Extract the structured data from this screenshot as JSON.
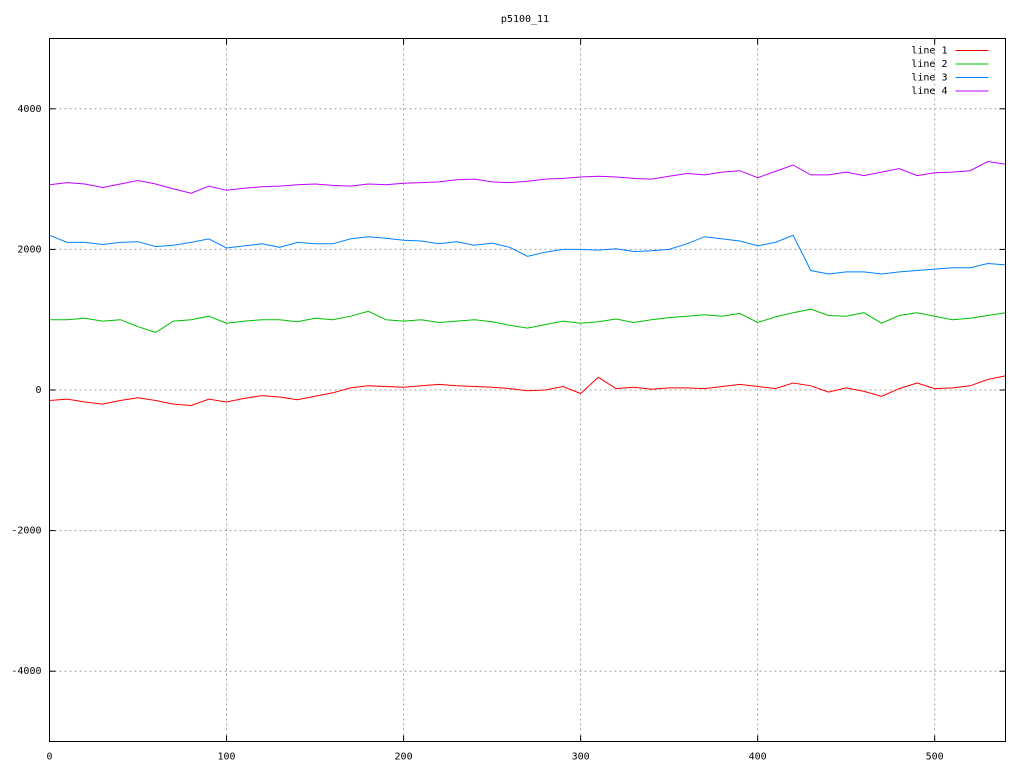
{
  "chart_data": {
    "type": "line",
    "title": "p5100_11",
    "x": [
      0,
      10,
      20,
      30,
      40,
      50,
      60,
      70,
      80,
      90,
      100,
      110,
      120,
      130,
      140,
      150,
      160,
      170,
      180,
      190,
      200,
      210,
      220,
      230,
      240,
      250,
      260,
      270,
      280,
      290,
      300,
      310,
      320,
      330,
      340,
      350,
      360,
      370,
      380,
      390,
      400,
      410,
      420,
      430,
      440,
      450,
      460,
      470,
      480,
      490,
      500,
      510,
      520,
      530,
      540
    ],
    "series": [
      {
        "name": "line 1",
        "color": "#ff0000",
        "values": [
          -150,
          -130,
          -170,
          -200,
          -150,
          -110,
          -150,
          -200,
          -220,
          -130,
          -170,
          -120,
          -80,
          -100,
          -140,
          -90,
          -40,
          30,
          60,
          50,
          40,
          60,
          80,
          60,
          50,
          40,
          20,
          -10,
          0,
          50,
          -50,
          180,
          20,
          40,
          10,
          30,
          30,
          20,
          50,
          80,
          50,
          20,
          100,
          60,
          -30,
          30,
          -20,
          -90,
          20,
          100,
          20,
          30,
          60,
          150,
          200
        ]
      },
      {
        "name": "line 2",
        "color": "#00c000",
        "values": [
          1000,
          1000,
          1020,
          980,
          1000,
          900,
          820,
          980,
          1000,
          1050,
          950,
          980,
          1000,
          1000,
          970,
          1020,
          1000,
          1050,
          1120,
          1000,
          980,
          1000,
          960,
          980,
          1000,
          970,
          920,
          880,
          930,
          980,
          950,
          970,
          1010,
          960,
          1000,
          1030,
          1050,
          1070,
          1050,
          1090,
          960,
          1040,
          1100,
          1150,
          1060,
          1050,
          1100,
          950,
          1060,
          1100,
          1050,
          1000,
          1020,
          1060,
          1100
        ]
      },
      {
        "name": "line 3",
        "color": "#0080ff",
        "values": [
          2200,
          2100,
          2100,
          2070,
          2100,
          2110,
          2040,
          2060,
          2100,
          2150,
          2020,
          2050,
          2080,
          2030,
          2100,
          2080,
          2080,
          2150,
          2180,
          2160,
          2130,
          2120,
          2080,
          2110,
          2060,
          2090,
          2030,
          1900,
          1960,
          2000,
          2000,
          1990,
          2010,
          1970,
          1980,
          2000,
          2080,
          2180,
          2150,
          2120,
          2050,
          2100,
          2200,
          1700,
          1650,
          1680,
          1680,
          1650,
          1680,
          1700,
          1720,
          1740,
          1740,
          1800,
          1780
        ]
      },
      {
        "name": "line 4",
        "color": "#c000ff",
        "values": [
          2920,
          2950,
          2930,
          2880,
          2930,
          2980,
          2930,
          2860,
          2800,
          2900,
          2840,
          2870,
          2890,
          2900,
          2920,
          2930,
          2910,
          2900,
          2930,
          2920,
          2940,
          2950,
          2960,
          2990,
          3000,
          2960,
          2950,
          2970,
          3000,
          3010,
          3030,
          3040,
          3030,
          3010,
          3000,
          3040,
          3080,
          3060,
          3100,
          3120,
          3020,
          3110,
          3200,
          3060,
          3060,
          3100,
          3050,
          3100,
          3150,
          3050,
          3090,
          3100,
          3120,
          3250,
          3210
        ]
      }
    ],
    "xlim": [
      0,
      540
    ],
    "ylim": [
      -5000,
      5000
    ],
    "xticks": [
      0,
      100,
      200,
      300,
      400,
      500
    ],
    "yticks": [
      -4000,
      -2000,
      0,
      2000,
      4000
    ],
    "grid": true,
    "legend": "top-right"
  }
}
